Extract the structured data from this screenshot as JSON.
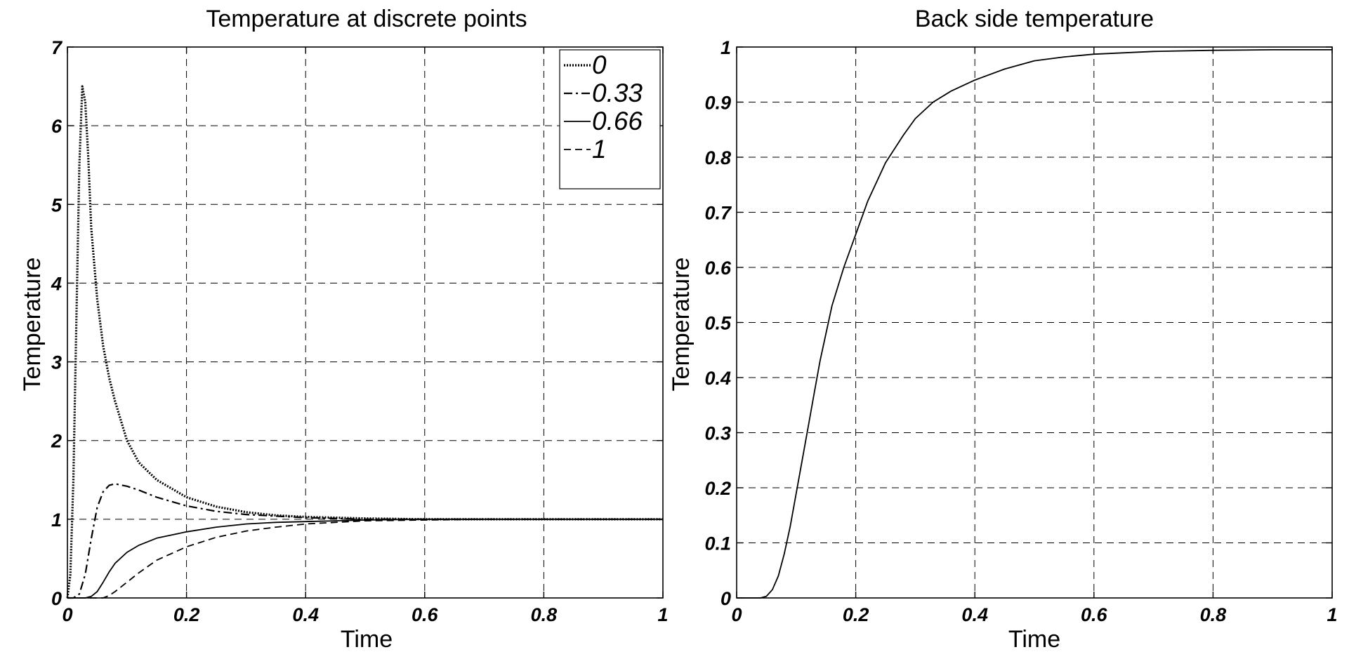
{
  "chart_data": [
    {
      "type": "line",
      "title": "Temperature at discrete points",
      "xlabel": "Time",
      "ylabel": "Temperature",
      "xlim": [
        0,
        1
      ],
      "ylim": [
        0,
        7
      ],
      "xticks": [
        0,
        0.2,
        0.4,
        0.6,
        0.8,
        1
      ],
      "yticks": [
        0,
        1,
        2,
        3,
        4,
        5,
        6,
        7
      ],
      "xtick_labels": [
        "0",
        "0.2",
        "0.4",
        "0.6",
        "0.8",
        "1"
      ],
      "ytick_labels": [
        "0",
        "1",
        "2",
        "3",
        "4",
        "5",
        "6",
        "7"
      ],
      "grid": true,
      "legend": "top-right",
      "series": [
        {
          "name": "0",
          "style": "dotted",
          "x": [
            0,
            0.005,
            0.01,
            0.015,
            0.02,
            0.025,
            0.03,
            0.035,
            0.04,
            0.05,
            0.06,
            0.07,
            0.08,
            0.1,
            0.12,
            0.15,
            0.2,
            0.25,
            0.3,
            0.35,
            0.4,
            0.45,
            0.5,
            0.6,
            0.7,
            0.8,
            0.9,
            1.0
          ],
          "y": [
            0,
            0.3,
            1.5,
            3.5,
            5.5,
            6.5,
            6.3,
            5.6,
            4.7,
            3.8,
            3.2,
            2.8,
            2.5,
            2.0,
            1.72,
            1.5,
            1.28,
            1.16,
            1.09,
            1.05,
            1.03,
            1.02,
            1.01,
            1.0,
            1.0,
            1.0,
            1.0,
            1.0
          ]
        },
        {
          "name": "0.33",
          "style": "dashdot",
          "x": [
            0,
            0.01,
            0.02,
            0.03,
            0.04,
            0.05,
            0.06,
            0.07,
            0.08,
            0.1,
            0.12,
            0.15,
            0.2,
            0.25,
            0.3,
            0.35,
            0.4,
            0.45,
            0.5,
            0.6,
            0.7,
            0.8,
            0.9,
            1.0
          ],
          "y": [
            0,
            0.0,
            0.05,
            0.3,
            0.75,
            1.15,
            1.35,
            1.43,
            1.45,
            1.42,
            1.37,
            1.28,
            1.17,
            1.1,
            1.06,
            1.04,
            1.02,
            1.01,
            1.0,
            1.0,
            1.0,
            1.0,
            1.0,
            1.0
          ]
        },
        {
          "name": "0.66",
          "style": "solid",
          "x": [
            0,
            0.03,
            0.04,
            0.05,
            0.06,
            0.07,
            0.08,
            0.1,
            0.12,
            0.15,
            0.2,
            0.25,
            0.3,
            0.35,
            0.4,
            0.45,
            0.5,
            0.6,
            0.7,
            0.8,
            0.9,
            1.0
          ],
          "y": [
            0,
            0.0,
            0.02,
            0.08,
            0.2,
            0.33,
            0.44,
            0.58,
            0.67,
            0.76,
            0.84,
            0.9,
            0.94,
            0.96,
            0.97,
            0.98,
            0.99,
            1.0,
            1.0,
            1.0,
            1.0,
            1.0
          ]
        },
        {
          "name": "1",
          "style": "dashed",
          "x": [
            0,
            0.06,
            0.07,
            0.08,
            0.1,
            0.12,
            0.15,
            0.2,
            0.25,
            0.3,
            0.35,
            0.4,
            0.45,
            0.5,
            0.6,
            0.7,
            0.8,
            0.9,
            1.0
          ],
          "y": [
            0,
            0.0,
            0.03,
            0.08,
            0.2,
            0.32,
            0.48,
            0.65,
            0.77,
            0.85,
            0.9,
            0.94,
            0.96,
            0.98,
            0.99,
            1.0,
            1.0,
            1.0,
            1.0
          ]
        }
      ]
    },
    {
      "type": "line",
      "title": "Back side temperature",
      "xlabel": "Time",
      "ylabel": "Temperature",
      "xlim": [
        0,
        1
      ],
      "ylim": [
        0,
        1
      ],
      "xticks": [
        0,
        0.2,
        0.4,
        0.6,
        0.8,
        1
      ],
      "yticks": [
        0,
        0.1,
        0.2,
        0.3,
        0.4,
        0.5,
        0.6,
        0.7,
        0.8,
        0.9,
        1
      ],
      "xtick_labels": [
        "0",
        "0.2",
        "0.4",
        "0.6",
        "0.8",
        "1"
      ],
      "ytick_labels": [
        "0",
        "0.1",
        "0.2",
        "0.3",
        "0.4",
        "0.5",
        "0.6",
        "0.7",
        "0.8",
        "0.9",
        "1"
      ],
      "grid": true,
      "series": [
        {
          "style": "solid",
          "x": [
            0,
            0.04,
            0.05,
            0.06,
            0.07,
            0.08,
            0.09,
            0.1,
            0.11,
            0.12,
            0.13,
            0.14,
            0.15,
            0.16,
            0.18,
            0.2,
            0.22,
            0.25,
            0.28,
            0.3,
            0.33,
            0.36,
            0.4,
            0.45,
            0.5,
            0.55,
            0.6,
            0.7,
            0.8,
            0.9,
            1.0
          ],
          "y": [
            0,
            0.0,
            0.003,
            0.015,
            0.04,
            0.08,
            0.13,
            0.19,
            0.25,
            0.31,
            0.37,
            0.43,
            0.48,
            0.53,
            0.6,
            0.66,
            0.72,
            0.79,
            0.84,
            0.87,
            0.9,
            0.92,
            0.94,
            0.96,
            0.975,
            0.982,
            0.987,
            0.992,
            0.994,
            0.995,
            0.995
          ]
        }
      ]
    }
  ]
}
